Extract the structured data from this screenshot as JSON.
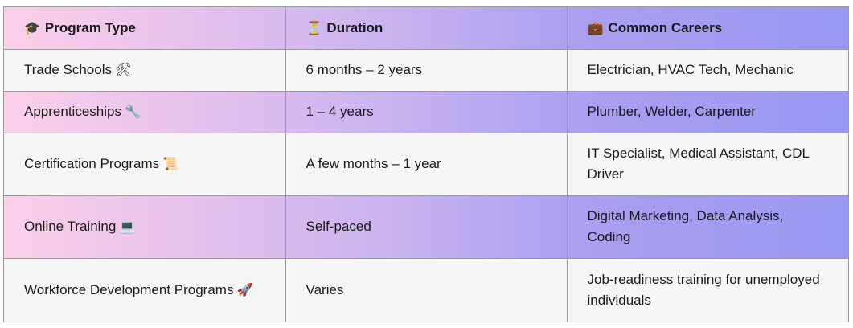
{
  "table": {
    "headers": [
      {
        "icon": "🎓",
        "icon_name": "graduation-cap-icon",
        "label": "Program Type"
      },
      {
        "icon": "⏳",
        "icon_name": "hourglass-icon",
        "label": "Duration"
      },
      {
        "icon": "💼",
        "icon_name": "briefcase-icon",
        "label": "Common Careers"
      }
    ],
    "rows": [
      {
        "program": "Trade Schools",
        "icon": "🛠",
        "icon_name": "tools-icon",
        "duration": "6 months – 2 years",
        "careers": "Electrician, HVAC Tech, Mechanic"
      },
      {
        "program": "Apprenticeships",
        "icon": "🔧",
        "icon_name": "wrench-icon",
        "duration": "1 – 4 years",
        "careers": "Plumber, Welder, Carpenter"
      },
      {
        "program": "Certification Programs",
        "icon": "📜",
        "icon_name": "scroll-icon",
        "duration": "A few months – 1 year",
        "careers": "IT Specialist, Medical Assistant, CDL Driver"
      },
      {
        "program": "Online Training",
        "icon": "💻",
        "icon_name": "laptop-icon",
        "duration": "Self-paced",
        "careers": "Digital Marketing, Data Analysis, Coding"
      },
      {
        "program": "Workforce Development Programs",
        "icon": "🚀",
        "icon_name": "rocket-icon",
        "duration": "Varies",
        "careers": "Job-readiness training for unemployed individuals"
      }
    ]
  },
  "colors": {
    "gradient_start": "#fbcfe8",
    "gradient_end": "#9a98f2",
    "plain_row": "#f6f6f6",
    "border": "#9a9a9a"
  }
}
